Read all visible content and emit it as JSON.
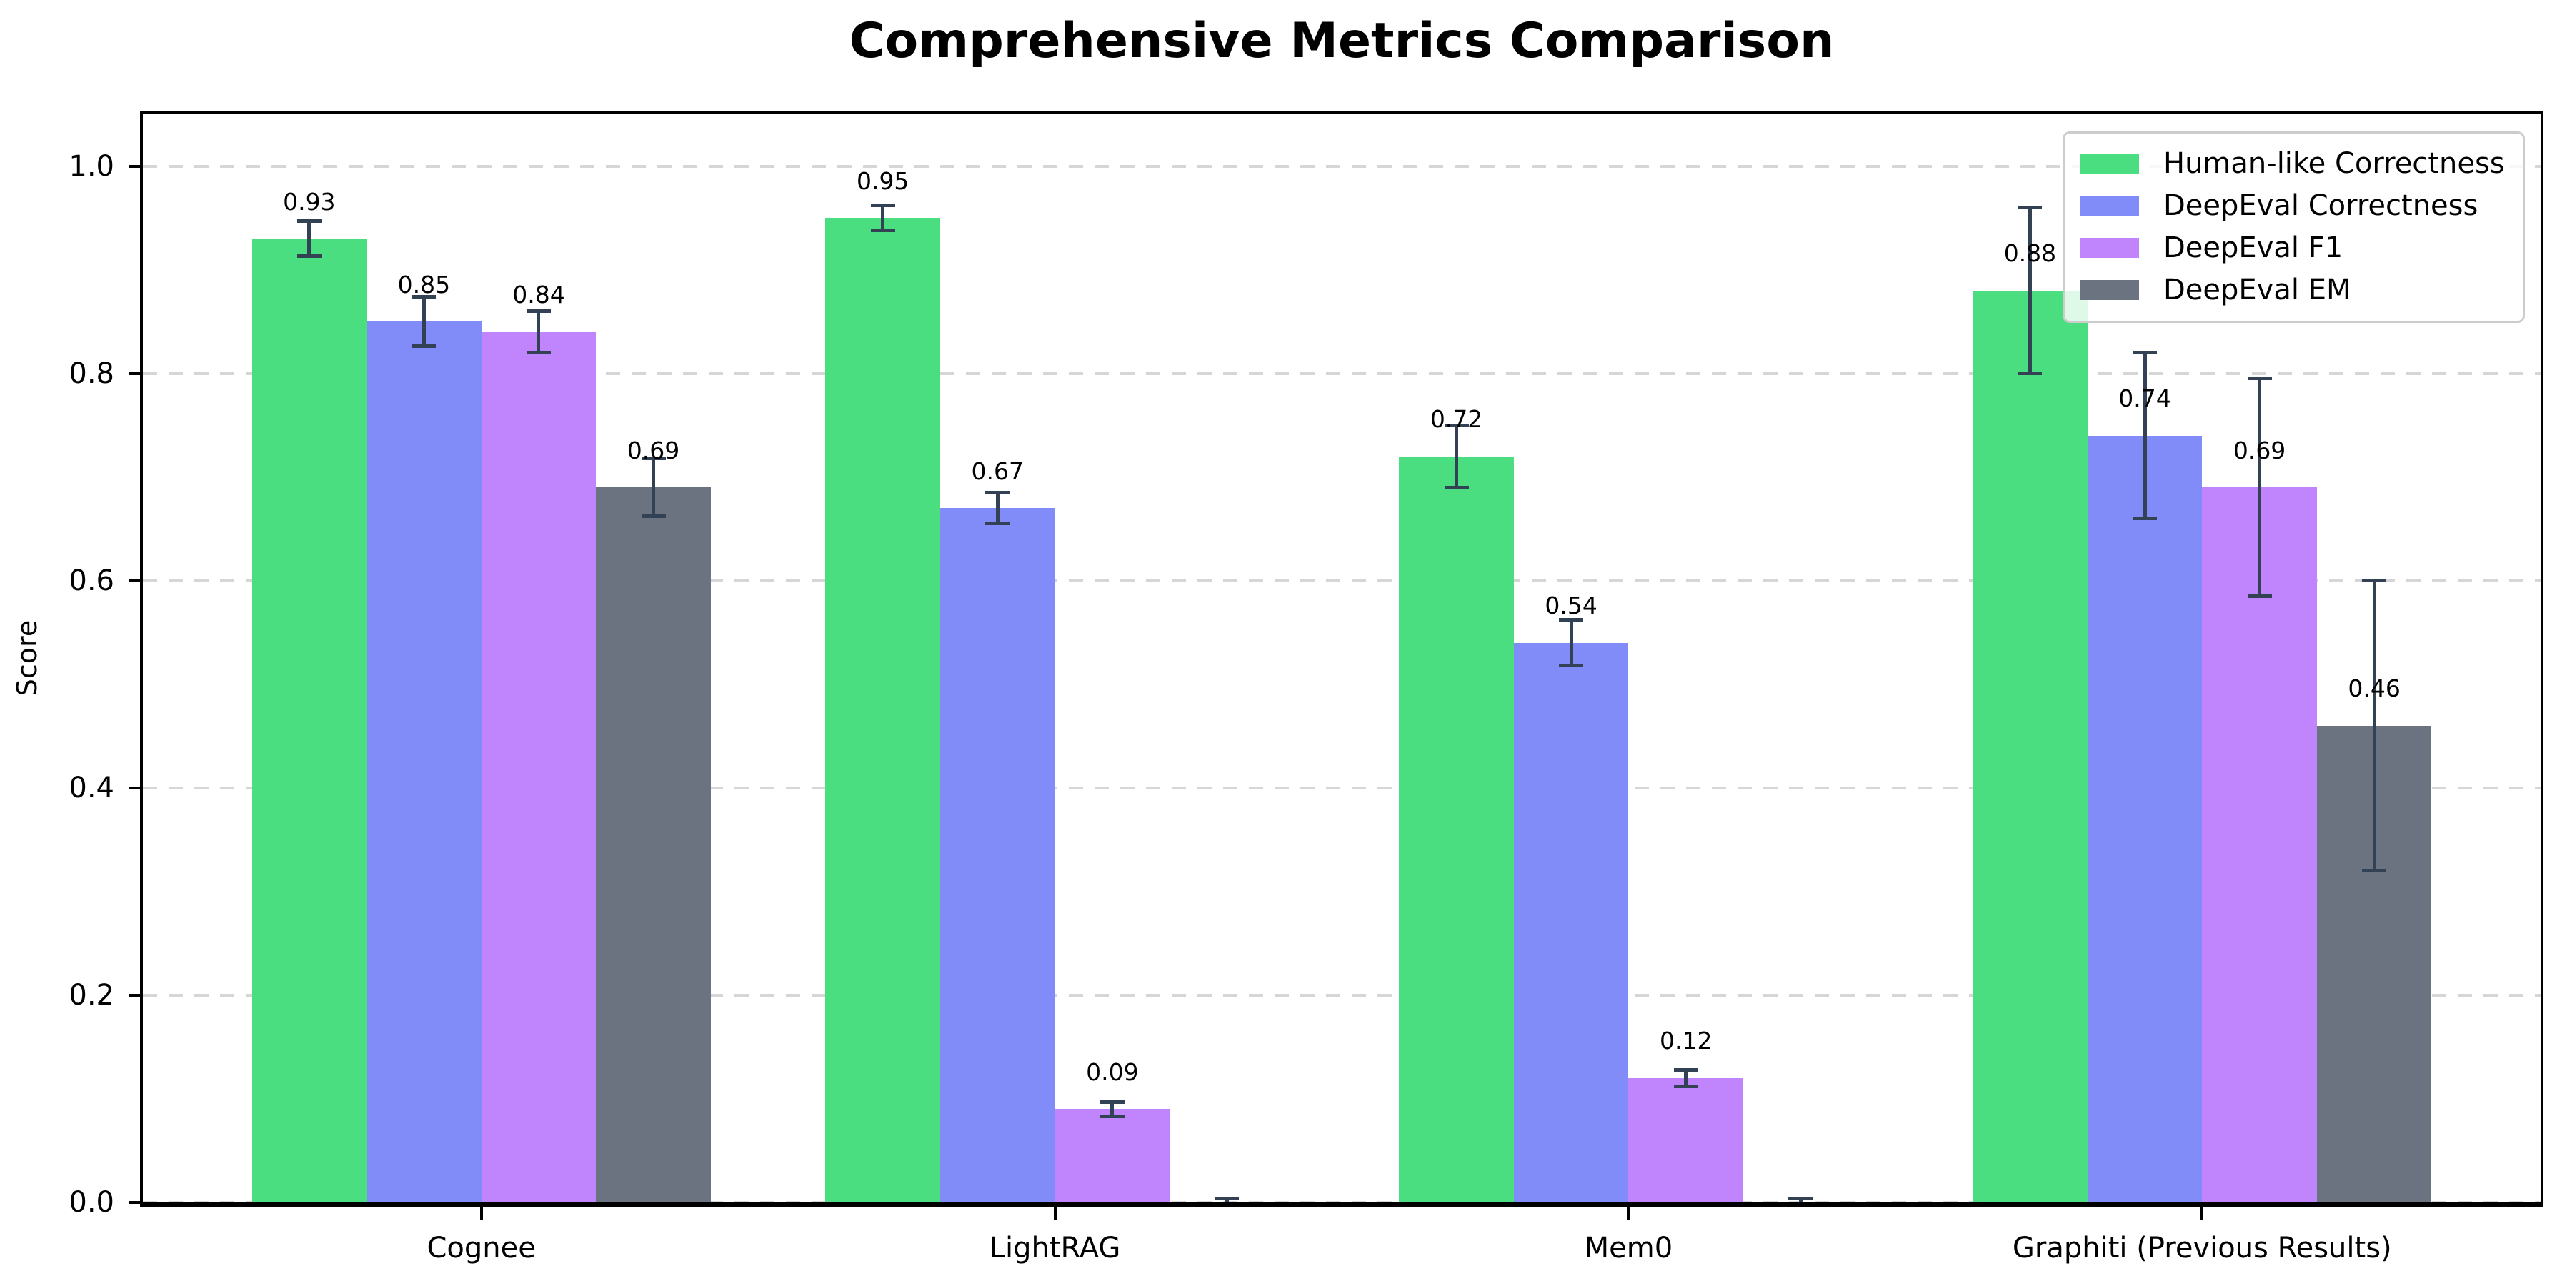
{
  "figure": {
    "title": "Comprehensive Metrics Comparison",
    "ylabel": "Score"
  },
  "chart_data": {
    "type": "bar",
    "title": "Comprehensive Metrics Comparison",
    "xlabel": "",
    "ylabel": "Score",
    "categories": [
      "Cognee",
      "LightRAG",
      "Mem0",
      "Graphiti (Previous Results)"
    ],
    "series": [
      {
        "name": "Human-like Correctness",
        "color": "#4ade80",
        "values": [
          0.93,
          0.95,
          0.72,
          0.88
        ],
        "errors": [
          0.017,
          0.012,
          0.03,
          0.08
        ],
        "labels": [
          "0.93",
          "0.95",
          "0.72",
          "0.88"
        ]
      },
      {
        "name": "DeepEval Correctness",
        "color": "#818cf8",
        "values": [
          0.85,
          0.67,
          0.54,
          0.74
        ],
        "errors": [
          0.024,
          0.015,
          0.022,
          0.08
        ],
        "labels": [
          "0.85",
          "0.67",
          "0.54",
          "0.74"
        ]
      },
      {
        "name": "DeepEval F1",
        "color": "#c084fc",
        "values": [
          0.84,
          0.09,
          0.12,
          0.69
        ],
        "errors": [
          0.02,
          0.007,
          0.008,
          0.105
        ],
        "labels": [
          "0.84",
          "0.09",
          "0.12",
          "0.69"
        ]
      },
      {
        "name": "DeepEval EM",
        "color": "#6b7280",
        "values": [
          0.69,
          0.0,
          0.0,
          0.46
        ],
        "errors": [
          0.028,
          0.004,
          0.004,
          0.14
        ],
        "labels": [
          "0.69",
          null,
          null,
          "0.46"
        ]
      }
    ],
    "ylim": [
      0,
      1.05
    ],
    "yticks": [
      0.0,
      0.2,
      0.4,
      0.6,
      0.8,
      1.0
    ],
    "ytick_labels": [
      "0.0",
      "0.2",
      "0.4",
      "0.6",
      "0.8",
      "1.0"
    ],
    "grid": "horizontal dashed",
    "legend_position": "upper right",
    "colors": {
      "error_bar": "#334155",
      "grid_line": "#d6d6d6",
      "axis": "#000000",
      "legend_border": "#cccccc",
      "background": "#ffffff"
    }
  }
}
